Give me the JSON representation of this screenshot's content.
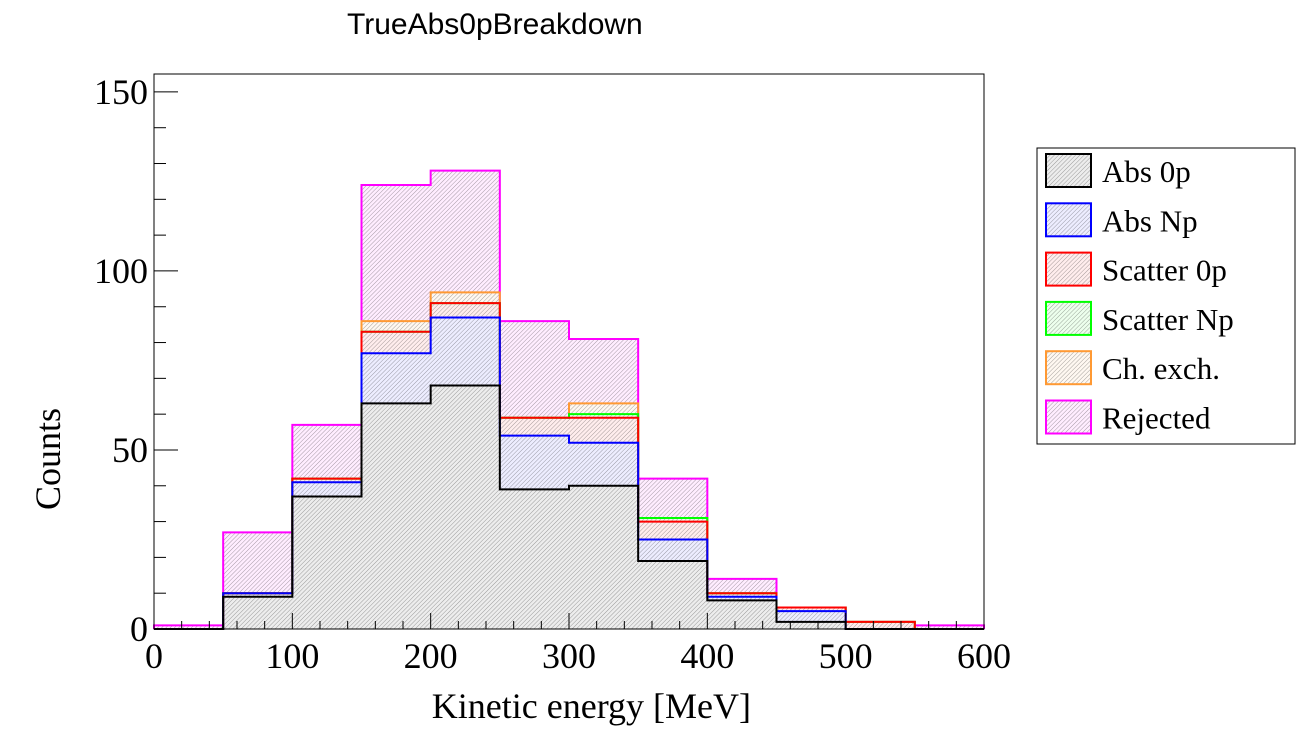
{
  "chart_data": {
    "type": "bar",
    "title": "TrueAbs0pBreakdown",
    "xlabel": "Kinetic energy [MeV]",
    "ylabel": "Counts",
    "xlim": [
      0,
      600
    ],
    "ylim": [
      0,
      155
    ],
    "x_ticks": [
      0,
      100,
      200,
      300,
      400,
      500,
      600
    ],
    "y_ticks": [
      0,
      50,
      100,
      150
    ],
    "bin_edges": [
      0,
      50,
      100,
      150,
      200,
      250,
      300,
      350,
      400,
      450,
      500,
      550,
      600
    ],
    "stacked": true,
    "legend_position": "right",
    "grid": false,
    "series": [
      {
        "name": "Abs 0p",
        "color": "#000000",
        "values": [
          0,
          9,
          37,
          63,
          68,
          39,
          40,
          19,
          8,
          2,
          0,
          0
        ]
      },
      {
        "name": "Abs Np",
        "color": "#0000ff",
        "values": [
          0,
          1,
          4,
          14,
          19,
          15,
          12,
          6,
          1,
          3,
          0,
          0
        ]
      },
      {
        "name": "Scatter 0p",
        "color": "#ff0000",
        "values": [
          0,
          0,
          1,
          6,
          4,
          5,
          7,
          5,
          1,
          1,
          2,
          0
        ]
      },
      {
        "name": "Scatter Np",
        "color": "#00ff00",
        "values": [
          0,
          0,
          0,
          0,
          0,
          0,
          1,
          1,
          0,
          0,
          0,
          0
        ]
      },
      {
        "name": "Ch. exch.",
        "color": "#ff9933",
        "values": [
          0,
          0,
          0,
          3,
          3,
          0,
          3,
          0,
          0,
          0,
          0,
          0
        ]
      },
      {
        "name": "Rejected",
        "color": "#ff00ff",
        "values": [
          1,
          17,
          15,
          38,
          34,
          27,
          18,
          11,
          4,
          0,
          0,
          1
        ]
      }
    ]
  }
}
